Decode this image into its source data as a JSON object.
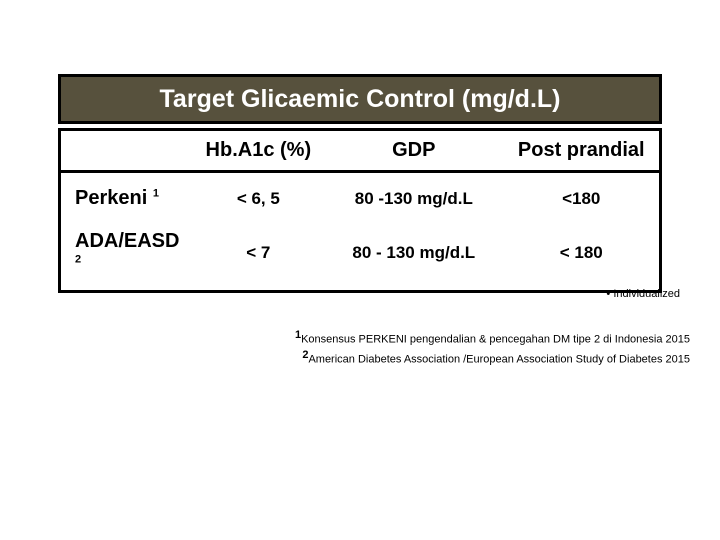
{
  "title": "Target Glicaemic Control (mg/d.L)",
  "columns": {
    "org": "",
    "hba1c": "Hb.A1c (%)",
    "gdp": "GDP",
    "post": "Post prandial"
  },
  "rows": [
    {
      "org": "Perkeni",
      "org_sup": "1",
      "hba1c": "< 6, 5",
      "gdp": "80 -130 mg/d.L",
      "post": "<180"
    },
    {
      "org": "ADA/EASD",
      "org_sup": "2",
      "hba1c": "< 7",
      "gdp": "80 - 130 mg/d.L",
      "post": "< 180"
    }
  ],
  "note_bullet": "•",
  "note_text": "Individualized",
  "ref1_sup": "1",
  "ref1_text": "Konsensus PERKENI pengendalian & pencegahan DM tipe 2 di Indonesia 2015",
  "ref2_sup": "2",
  "ref2_text": "American Diabetes Association /European Association Study of Diabetes 2015",
  "colors": {
    "title_bg": "#57513d",
    "title_text": "#ffffff",
    "border": "#000000",
    "body_bg": "#ffffff",
    "text": "#000000"
  }
}
